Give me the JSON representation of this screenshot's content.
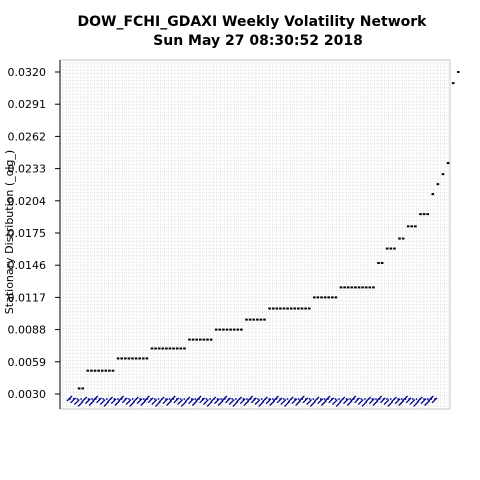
{
  "chart_data": {
    "type": "scatter",
    "title": "DOW_FCHI_GDAXI  Weekly Volatility Network",
    "subtitle": "Sun May 27 08:30:52 2018",
    "ylabel": "Stationary Distribution (_olg_)",
    "xlabel": "",
    "ylim": [
      0.003,
      0.032
    ],
    "yticks": [
      "0.0320",
      "0.0291",
      "0.0262",
      "0.0233",
      "0.0204",
      "0.0175",
      "0.0146",
      "0.0117",
      "0.0088",
      "0.0059",
      "0.0030"
    ],
    "grid": true,
    "point_color": "#000000",
    "baseline_color": "#00008b",
    "grid_color": "#d0d0d0",
    "steps": [
      {
        "y": 0.0035,
        "count": 2
      },
      {
        "y": 0.0051,
        "count": 8
      },
      {
        "y": 0.0062,
        "count": 9
      },
      {
        "y": 0.0071,
        "count": 10
      },
      {
        "y": 0.0079,
        "count": 7
      },
      {
        "y": 0.0088,
        "count": 8
      },
      {
        "y": 0.0097,
        "count": 6
      },
      {
        "y": 0.0107,
        "count": 12
      },
      {
        "y": 0.0117,
        "count": 7
      },
      {
        "y": 0.0126,
        "count": 10
      },
      {
        "y": 0.0148,
        "count": 2
      },
      {
        "y": 0.0161,
        "count": 3
      },
      {
        "y": 0.017,
        "count": 2
      },
      {
        "y": 0.0181,
        "count": 3
      },
      {
        "y": 0.0192,
        "count": 3
      },
      {
        "y": 0.021,
        "count": 1
      },
      {
        "y": 0.0219,
        "count": 1
      },
      {
        "y": 0.0228,
        "count": 1
      },
      {
        "y": 0.0238,
        "count": 1
      },
      {
        "y": 0.031,
        "count": 1
      },
      {
        "y": 0.032,
        "count": 1
      }
    ],
    "baseline_count": 100
  }
}
